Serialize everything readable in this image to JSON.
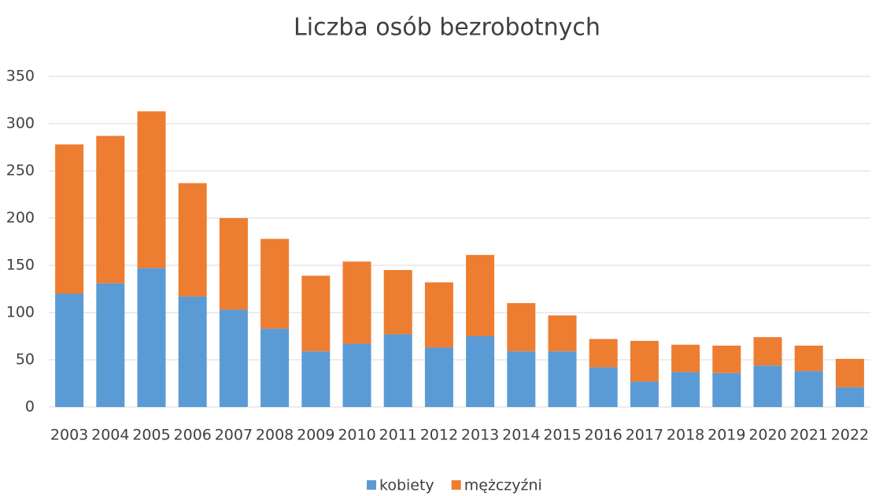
{
  "chart_data": {
    "type": "stacked_bar",
    "title": "Liczba osób bezrobotnych",
    "categories": [
      "2003",
      "2004",
      "2005",
      "2006",
      "2007",
      "2008",
      "2009",
      "2010",
      "2011",
      "2012",
      "2013",
      "2014",
      "2015",
      "2016",
      "2017",
      "2018",
      "2019",
      "2020",
      "2021",
      "2022"
    ],
    "series": [
      {
        "name": "kobiety",
        "color": "#5b9bd5",
        "values": [
          120,
          131,
          147,
          117,
          103,
          83,
          59,
          67,
          77,
          63,
          75,
          59,
          59,
          42,
          27,
          37,
          36,
          44,
          38,
          21
        ]
      },
      {
        "name": "mężczyźni",
        "color": "#ed7d31",
        "values": [
          158,
          156,
          166,
          120,
          97,
          95,
          80,
          87,
          68,
          69,
          86,
          51,
          38,
          30,
          43,
          29,
          29,
          30,
          27,
          30
        ]
      }
    ],
    "ylim": [
      0,
      350
    ],
    "yticks": [
      0,
      50,
      100,
      150,
      200,
      250,
      300,
      350
    ],
    "grid": true,
    "legend": "bottom"
  }
}
